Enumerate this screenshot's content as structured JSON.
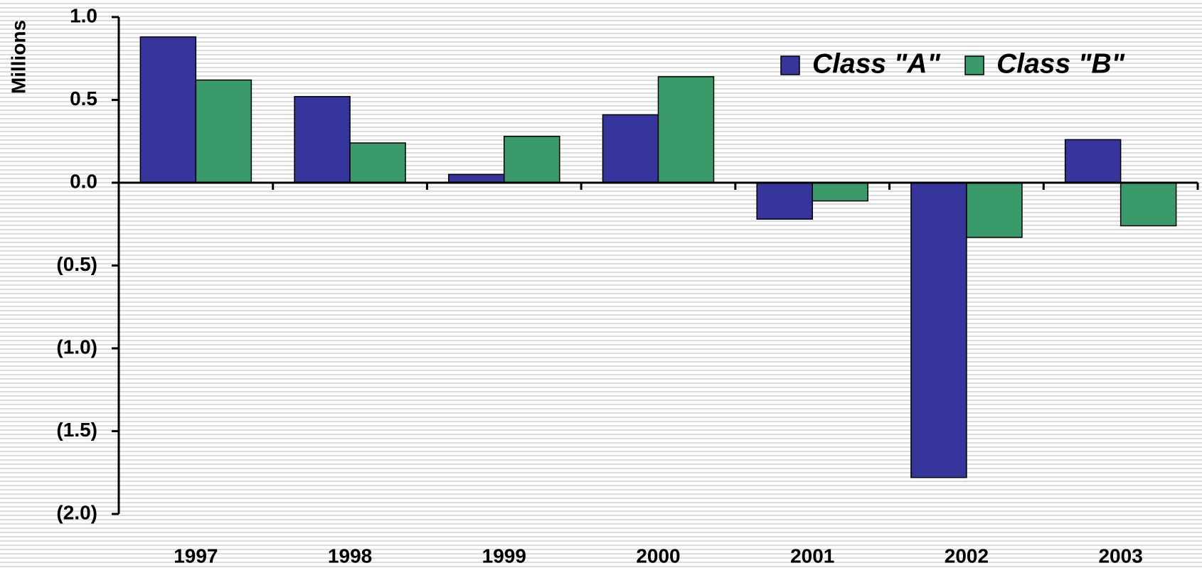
{
  "chart_data": {
    "type": "bar",
    "y_label": "Millions",
    "categories": [
      "1997",
      "1998",
      "1999",
      "2000",
      "2001",
      "2002",
      "2003"
    ],
    "series": [
      {
        "name": "Class \"A\"",
        "color": "#36359b",
        "values": [
          0.88,
          0.52,
          0.05,
          0.41,
          -0.22,
          -1.78,
          0.26
        ]
      },
      {
        "name": "Class \"B\"",
        "color": "#3a9a6a",
        "values": [
          0.62,
          0.24,
          0.28,
          0.64,
          -0.11,
          -0.33,
          -0.26
        ]
      }
    ],
    "ylim": [
      -2,
      1
    ],
    "yticks": [
      {
        "value": 1,
        "label": "1.0"
      },
      {
        "value": 0.5,
        "label": "0.5"
      },
      {
        "value": 0,
        "label": "0.0"
      },
      {
        "value": -0.5,
        "label": "(0.5)"
      },
      {
        "value": -1,
        "label": "(1.0)"
      },
      {
        "value": -1.5,
        "label": "(1.5)"
      },
      {
        "value": -2,
        "label": "(2.0)"
      }
    ],
    "legend": "upper right"
  }
}
